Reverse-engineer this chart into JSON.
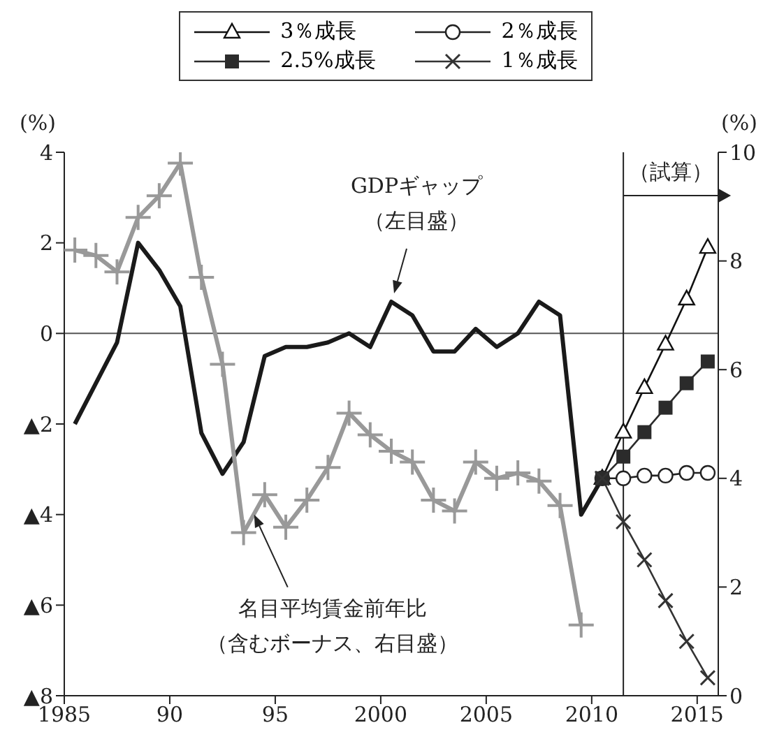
{
  "chart_data": {
    "type": "line",
    "ylabel": "(%)",
    "y2label": "(%)",
    "xlim": [
      1985,
      2016
    ],
    "xticks": [
      1985,
      {
        "value": 1990,
        "label": "90"
      },
      {
        "value": 1995,
        "label": "95"
      },
      2000,
      2005,
      2010,
      2015
    ],
    "ylim": [
      -8,
      4
    ],
    "yticks": [
      {
        "value": -8,
        "label": "▲8"
      },
      {
        "value": -6,
        "label": "▲6"
      },
      {
        "value": -4,
        "label": "▲4"
      },
      {
        "value": -2,
        "label": "▲2"
      },
      0,
      2,
      4
    ],
    "y2lim": [
      0,
      10
    ],
    "y2ticks": [
      0,
      2,
      4,
      6,
      8,
      10
    ],
    "grid": false,
    "legend": "top",
    "series": [
      {
        "name": "3％成長",
        "color": "#111111",
        "axis": "y2",
        "marker": "triangle",
        "x": [
          2010.5,
          2011.5,
          2012.5,
          2013.5,
          2014.5,
          2015.5
        ],
        "values": [
          4.0,
          4.85,
          5.67,
          6.47,
          7.3,
          8.25
        ]
      },
      {
        "name": "2％成長",
        "color": "#222222",
        "axis": "y2",
        "marker": "circle",
        "x": [
          2010.5,
          2011.5,
          2012.5,
          2013.5,
          2014.5,
          2015.5
        ],
        "values": [
          4.0,
          4.0,
          4.05,
          4.05,
          4.1,
          4.1
        ]
      },
      {
        "name": "2.5%成長",
        "color": "#2b2b2b",
        "axis": "y2",
        "marker": "square",
        "x": [
          2010.5,
          2011.5,
          2012.5,
          2013.5,
          2014.5,
          2015.5
        ],
        "values": [
          4.0,
          4.4,
          4.85,
          5.3,
          5.75,
          6.15
        ]
      },
      {
        "name": "1％成長",
        "color": "#333333",
        "axis": "y2",
        "marker": "cross",
        "x": [
          2010.5,
          2011.5,
          2012.5,
          2013.5,
          2014.5,
          2015.5
        ],
        "values": [
          4.0,
          3.2,
          2.5,
          1.75,
          1.0,
          0.33
        ]
      },
      {
        "color": "#1a1a1a",
        "marker": "none",
        "x": [
          1985.5,
          1986.5,
          1987.5,
          1988.5,
          1989.5,
          1990.5,
          1991.5,
          1992.5,
          1993.5,
          1994.5,
          1995.5,
          1996.5,
          1997.5,
          1998.5,
          1999.5,
          2000.5,
          2001.5,
          2002.5,
          2003.5,
          2004.5,
          2005.5,
          2006.5,
          2007.5,
          2008.5,
          2009.5,
          2010.5
        ],
        "values": [
          -2.0,
          -1.1,
          -0.2,
          2.0,
          1.4,
          0.6,
          -2.2,
          -3.1,
          -2.4,
          -0.5,
          -0.3,
          -0.3,
          -0.2,
          0.0,
          -0.3,
          0.7,
          0.4,
          -0.4,
          -0.4,
          0.1,
          -0.3,
          0.0,
          0.7,
          0.4,
          -4.0,
          -3.2
        ]
      },
      {
        "color": "#999999",
        "axis": "y2",
        "marker": "plus",
        "x": [
          1985.5,
          1986.5,
          1987.5,
          1988.5,
          1989.5,
          1990.5,
          1991.5,
          1992.5,
          1993.5,
          1994.5,
          1995.5,
          1996.5,
          1997.5,
          1998.5,
          1999.5,
          2000.5,
          2001.5,
          2002.5,
          2003.5,
          2004.5,
          2005.5,
          2006.5,
          2007.5,
          2008.5,
          2009.5
        ],
        "values": [
          8.2,
          8.1,
          7.8,
          8.8,
          9.2,
          9.8,
          7.7,
          6.1,
          3.0,
          3.7,
          3.1,
          3.6,
          4.2,
          5.2,
          4.8,
          4.5,
          4.3,
          3.6,
          3.4,
          4.3,
          4.0,
          4.1,
          3.95,
          3.5,
          1.3
        ]
      }
    ],
    "ref_lines": [
      {
        "axis": "y",
        "value": 0,
        "color": "#555555"
      },
      {
        "axis": "x",
        "value": 2011.5,
        "label": "（試算）",
        "color": "#222222"
      }
    ],
    "annotations": [
      "GDPギャップ（左目盛）",
      {
        "text": "名目平均賃金前年比（含むボーナス、右目盛）",
        "x": 1994.0,
        "y": -4.0
      }
    ]
  }
}
